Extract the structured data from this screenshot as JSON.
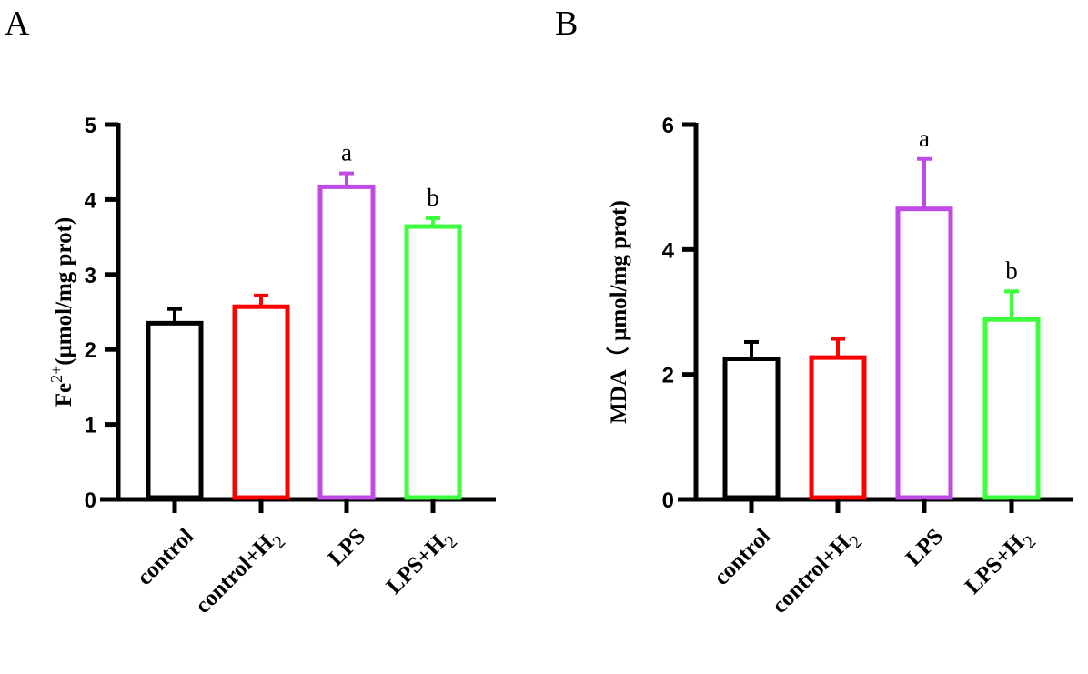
{
  "chart_data": [
    {
      "type": "bar",
      "panel_label": "A",
      "title": "",
      "ylabel_main": "Fe",
      "ylabel_sup": "2+",
      "ylabel_rest": "(μmol/mg prot)",
      "ylim": [
        0,
        5
      ],
      "yticks": [
        "0",
        "1",
        "2",
        "3",
        "4",
        "5"
      ],
      "categories": [
        {
          "main": "control",
          "sub": ""
        },
        {
          "main": "control+H",
          "sub": "2"
        },
        {
          "main": "LPS",
          "sub": ""
        },
        {
          "main": "LPS+H",
          "sub": "2"
        }
      ],
      "values": [
        2.35,
        2.57,
        4.17,
        3.64
      ],
      "errors": [
        0.19,
        0.15,
        0.18,
        0.11
      ],
      "annotations": [
        "",
        "",
        "a",
        "b"
      ],
      "colors": [
        "#000000",
        "#ff0000",
        "#c04ae6",
        "#3dff3d"
      ]
    },
    {
      "type": "bar",
      "panel_label": "B",
      "title": "",
      "ylabel_main": "MDA（ μmol/mg prot)",
      "ylabel_sup": "",
      "ylabel_rest": "",
      "ylim": [
        0,
        6
      ],
      "yticks": [
        "0",
        "2",
        "4",
        "6"
      ],
      "categories": [
        {
          "main": "control",
          "sub": ""
        },
        {
          "main": "control+H",
          "sub": "2"
        },
        {
          "main": "LPS",
          "sub": ""
        },
        {
          "main": "LPS+H",
          "sub": "2"
        }
      ],
      "values": [
        2.25,
        2.27,
        4.65,
        2.88
      ],
      "errors": [
        0.27,
        0.3,
        0.8,
        0.45
      ],
      "annotations": [
        "",
        "",
        "a",
        "b"
      ],
      "colors": [
        "#000000",
        "#ff0000",
        "#c04ae6",
        "#3dff3d"
      ]
    }
  ]
}
